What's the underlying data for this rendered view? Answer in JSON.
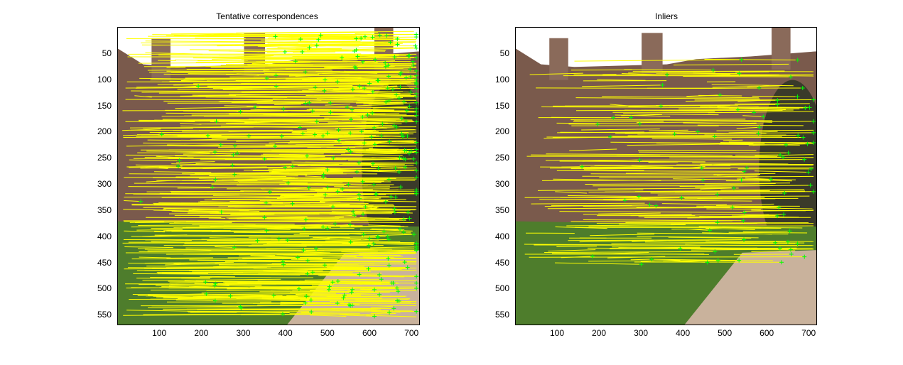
{
  "figure": {
    "panels": [
      {
        "id": "left",
        "title": "Tentative correspondences",
        "xticks": [
          "100",
          "200",
          "300",
          "400",
          "500",
          "600",
          "700"
        ],
        "yticks": [
          "50",
          "100",
          "150",
          "200",
          "250",
          "300",
          "350",
          "400",
          "450",
          "500",
          "550"
        ],
        "match_line_color": "#ffff00",
        "keypoint_color": "#00ff00",
        "density": "dense"
      },
      {
        "id": "right",
        "title": "Inliers",
        "xticks": [
          "100",
          "200",
          "300",
          "400",
          "500",
          "600",
          "700"
        ],
        "yticks": [
          "50",
          "100",
          "150",
          "200",
          "250",
          "300",
          "350",
          "400",
          "450",
          "500",
          "550"
        ],
        "match_line_color": "#ffff00",
        "keypoint_color": "#00ff00",
        "density": "sparse"
      }
    ],
    "colors": {
      "sky": "#ffffff",
      "brick": "#7a5a4c",
      "lawn": "#4e7d2c",
      "path": "#c9b29c",
      "match_line": "#ffff00",
      "keypoint": "#00ff00"
    }
  }
}
